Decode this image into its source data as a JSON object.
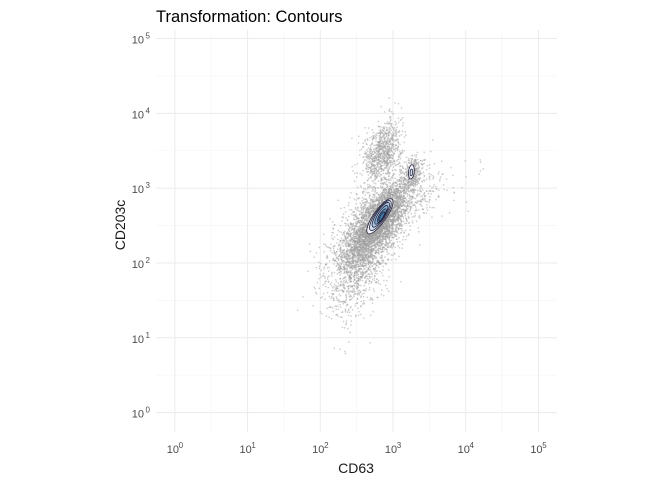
{
  "chart_data": {
    "type": "scatter",
    "subtype": "density-contour",
    "title": "Transformation: Contours",
    "xlabel": "CD63",
    "ylabel": "CD203c",
    "xscale": "log",
    "yscale": "log",
    "xlim": [
      0.55,
      180000
    ],
    "ylim": [
      0.55,
      130000
    ],
    "x_ticks": [
      {
        "base": "10",
        "exp": "0",
        "value": 1
      },
      {
        "base": "10",
        "exp": "1",
        "value": 10
      },
      {
        "base": "10",
        "exp": "2",
        "value": 100
      },
      {
        "base": "10",
        "exp": "3",
        "value": 1000
      },
      {
        "base": "10",
        "exp": "4",
        "value": 10000
      },
      {
        "base": "10",
        "exp": "5",
        "value": 100000
      }
    ],
    "y_ticks": [
      {
        "base": "10",
        "exp": "0",
        "value": 1
      },
      {
        "base": "10",
        "exp": "1",
        "value": 10
      },
      {
        "base": "10",
        "exp": "2",
        "value": 100
      },
      {
        "base": "10",
        "exp": "3",
        "value": 1000
      },
      {
        "base": "10",
        "exp": "4",
        "value": 10000
      },
      {
        "base": "10",
        "exp": "5",
        "value": 100000
      }
    ],
    "grid": true,
    "point_color": "#a0a0a0",
    "contour_fill_low": "#f3f4fb",
    "contour_fill_high": "#3d7fb4",
    "contour_line": "#25253d",
    "populations": [
      {
        "cx": 650,
        "cy": 380,
        "sx": 0.2,
        "sy": 0.26,
        "rho": 0.72,
        "n": 2600
      },
      {
        "cx": 450,
        "cy": 220,
        "sx": 0.27,
        "sy": 0.3,
        "rho": 0.55,
        "n": 1500
      },
      {
        "cx": 700,
        "cy": 3000,
        "sx": 0.13,
        "sy": 0.22,
        "rho": 0.35,
        "n": 900
      },
      {
        "cx": 1800,
        "cy": 1700,
        "sx": 0.06,
        "sy": 0.1,
        "rho": 0.3,
        "n": 300
      },
      {
        "cx": 300,
        "cy": 80,
        "sx": 0.2,
        "sy": 0.35,
        "rho": 0.4,
        "n": 700
      },
      {
        "cx": 1200,
        "cy": 700,
        "sx": 0.35,
        "sy": 0.22,
        "rho": 0.6,
        "n": 500
      }
    ],
    "contours": [
      {
        "level": 1,
        "cx": 660,
        "cy": 420,
        "sx": 0.18,
        "sy": 0.235,
        "rho": 0.82
      },
      {
        "level": 2,
        "cx": 670,
        "cy": 430,
        "sx": 0.15,
        "sy": 0.2,
        "rho": 0.82
      },
      {
        "level": 3,
        "cx": 680,
        "cy": 440,
        "sx": 0.12,
        "sy": 0.165,
        "rho": 0.82
      },
      {
        "level": 4,
        "cx": 690,
        "cy": 440,
        "sx": 0.09,
        "sy": 0.125,
        "rho": 0.82
      },
      {
        "level": 5,
        "cx": 700,
        "cy": 430,
        "sx": 0.062,
        "sy": 0.09,
        "rho": 0.82
      },
      {
        "level": 6,
        "cx": 700,
        "cy": 420,
        "sx": 0.04,
        "sy": 0.06,
        "rho": 0.82
      },
      {
        "level": 1,
        "cx": 1790,
        "cy": 1650,
        "sx": 0.04,
        "sy": 0.095,
        "rho": 0.2
      },
      {
        "level": 2,
        "cx": 1790,
        "cy": 1620,
        "sx": 0.018,
        "sy": 0.045,
        "rho": 0.2
      }
    ]
  }
}
